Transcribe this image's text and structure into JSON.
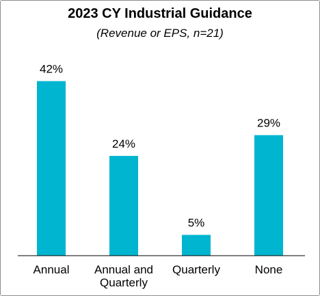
{
  "chart_data": {
    "type": "bar",
    "title": "2023 CY Industrial Guidance",
    "subtitle": "(Revenue or EPS, n=21)",
    "categories": [
      [
        "Annual"
      ],
      [
        "Annual and",
        "Quarterly"
      ],
      [
        "Quarterly"
      ],
      [
        "None"
      ]
    ],
    "values": [
      42,
      24,
      5,
      29
    ],
    "data_labels": [
      "42%",
      "24%",
      "5%",
      "29%"
    ],
    "ylim": [
      0,
      45
    ],
    "grid": false,
    "legend": "none",
    "bar_color": "#00B5CF",
    "axis_color": "#000000"
  }
}
